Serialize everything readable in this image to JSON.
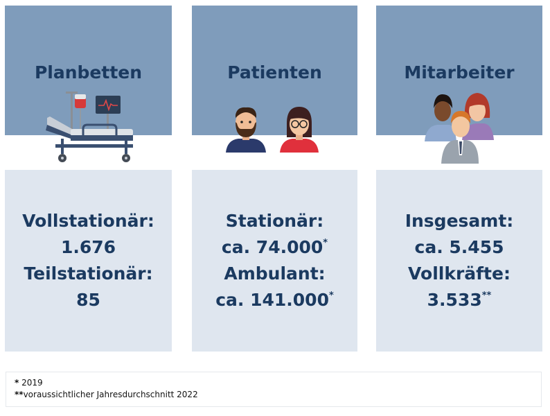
{
  "columns": [
    {
      "title": "Planbetten",
      "lines": [
        {
          "text": "Vollstationär:",
          "note": ""
        },
        {
          "text": "1.676",
          "note": ""
        },
        {
          "text": "Teilstationär:",
          "note": ""
        },
        {
          "text": "85",
          "note": ""
        }
      ],
      "icon": "hospital-bed-icon"
    },
    {
      "title": "Patienten",
      "lines": [
        {
          "text": "Stationär:",
          "note": ""
        },
        {
          "text": "ca. 74.000",
          "note": "*"
        },
        {
          "text": "Ambulant:",
          "note": ""
        },
        {
          "text": "ca. 141.000",
          "note": "*"
        }
      ],
      "icon": "patients-icon"
    },
    {
      "title": "Mitarbeiter",
      "lines": [
        {
          "text": "Insgesamt:",
          "note": ""
        },
        {
          "text": "ca. 5.455",
          "note": ""
        },
        {
          "text": "Vollkräfte:",
          "note": ""
        },
        {
          "text": "3.533",
          "note": "**"
        }
      ],
      "icon": "staff-group-icon"
    }
  ],
  "footnotes": [
    {
      "mark": "*",
      "text": " 2019"
    },
    {
      "mark": "**",
      "text": "voraussichtlicher Jahresdurchschnitt 2022"
    }
  ],
  "colors": {
    "header": "#7f9cbb",
    "panel": "#dfe6ef",
    "text": "#1b3a60"
  }
}
